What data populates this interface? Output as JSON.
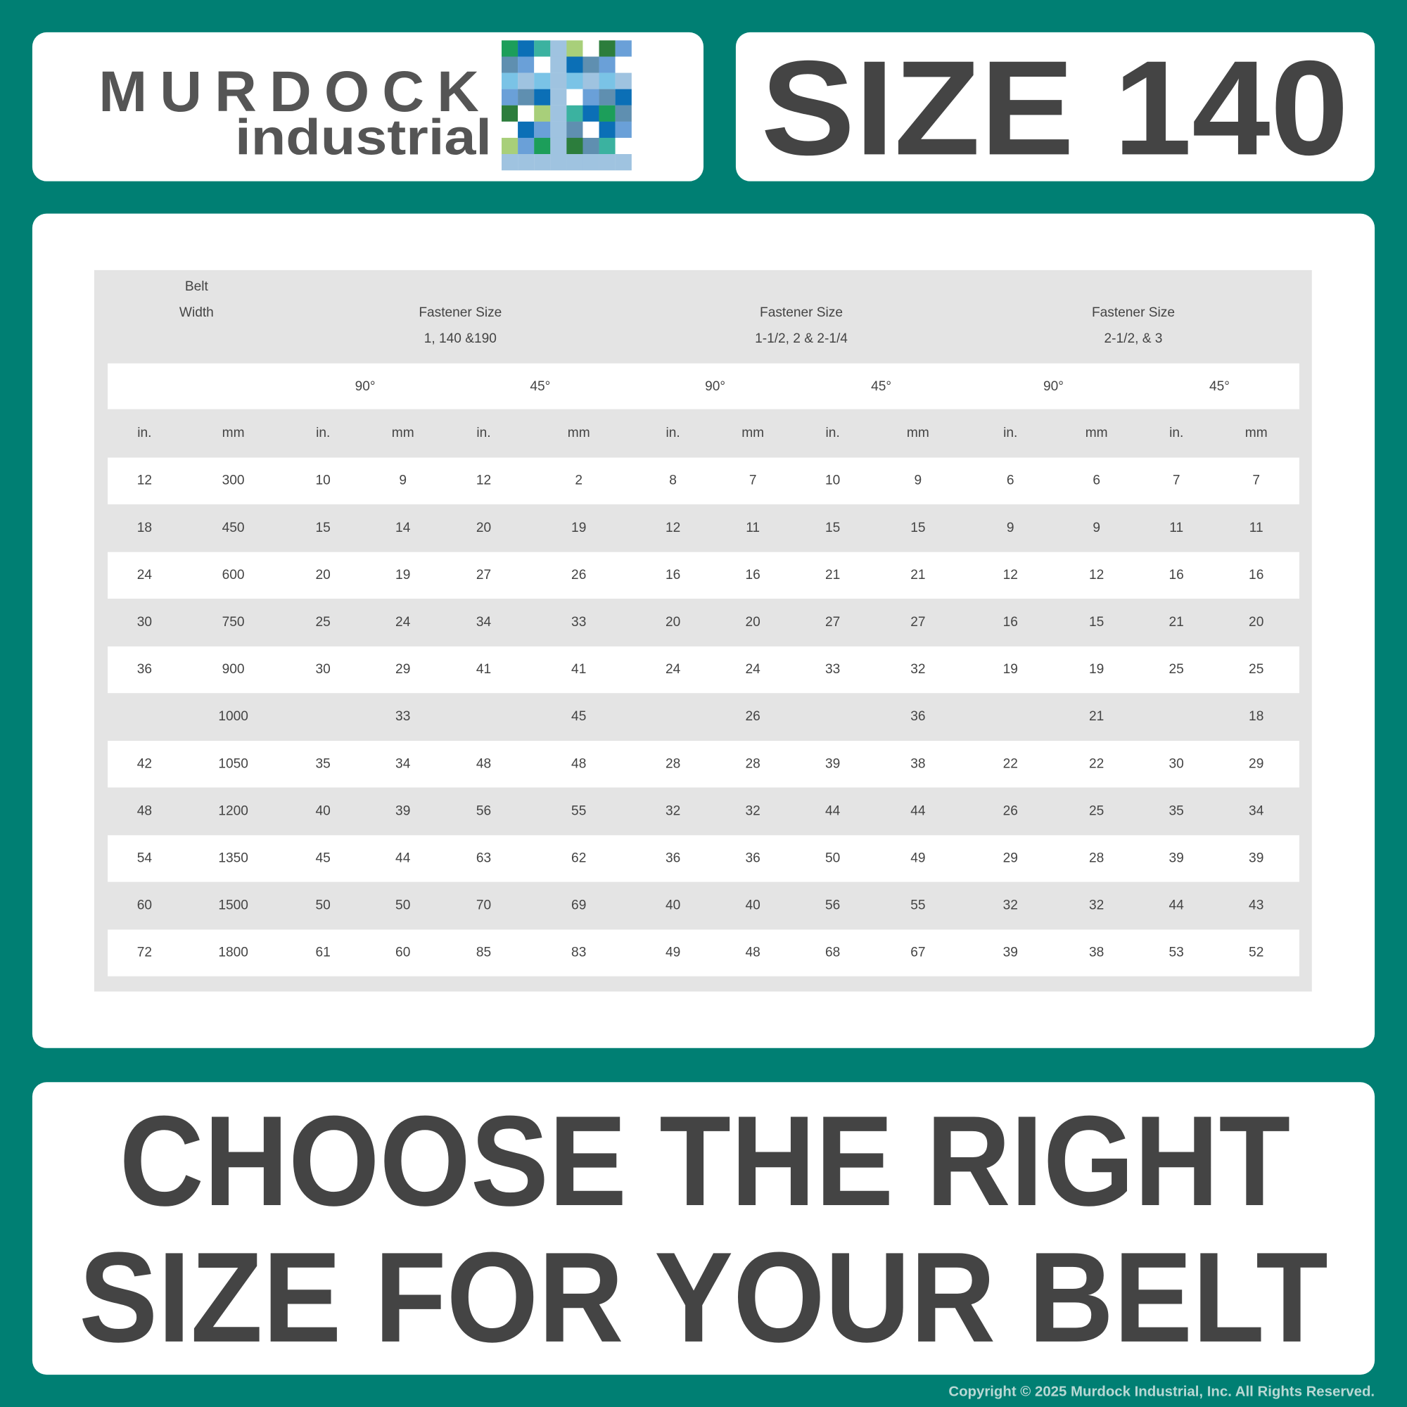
{
  "logo": {
    "brand": "MURDOCK",
    "sub": "industrial"
  },
  "size_title": "SIZE 140",
  "table": {
    "belt_width": [
      "Belt",
      "Width"
    ],
    "groups": [
      {
        "label": "Fastener Size",
        "sizes": "1, 140 &190"
      },
      {
        "label": "Fastener Size",
        "sizes": "1-1/2, 2 & 2-1/4"
      },
      {
        "label": "Fastener Size",
        "sizes": "2-1/2, & 3"
      }
    ],
    "angles": [
      "90°",
      "45°",
      "90°",
      "45°",
      "90°",
      "45°"
    ],
    "units": [
      "in.",
      "mm",
      "in.",
      "mm",
      "in.",
      "mm",
      "in.",
      "mm",
      "in.",
      "mm",
      "in.",
      "mm",
      "in.",
      "mm"
    ],
    "rows": [
      [
        12,
        300,
        10,
        9,
        12,
        2,
        8,
        7,
        10,
        9,
        6,
        6,
        7,
        7
      ],
      [
        18,
        450,
        15,
        14,
        20,
        19,
        12,
        11,
        15,
        15,
        9,
        9,
        11,
        11
      ],
      [
        24,
        600,
        20,
        19,
        27,
        26,
        16,
        16,
        21,
        21,
        12,
        12,
        16,
        16
      ],
      [
        30,
        750,
        25,
        24,
        34,
        33,
        20,
        20,
        27,
        27,
        16,
        15,
        21,
        20
      ],
      [
        36,
        900,
        30,
        29,
        41,
        41,
        24,
        24,
        33,
        32,
        19,
        19,
        25,
        25
      ],
      [
        null,
        1000,
        null,
        33,
        null,
        45,
        null,
        26,
        null,
        36,
        null,
        21,
        null,
        18
      ],
      [
        42,
        1050,
        35,
        34,
        48,
        48,
        28,
        28,
        39,
        38,
        22,
        22,
        30,
        29
      ],
      [
        48,
        1200,
        40,
        39,
        56,
        55,
        32,
        32,
        44,
        44,
        26,
        25,
        35,
        34
      ],
      [
        54,
        1350,
        45,
        44,
        63,
        62,
        36,
        36,
        50,
        49,
        29,
        28,
        39,
        39
      ],
      [
        60,
        1500,
        50,
        50,
        70,
        69,
        40,
        40,
        56,
        55,
        32,
        32,
        44,
        43
      ],
      [
        72,
        1800,
        61,
        60,
        85,
        83,
        49,
        48,
        68,
        67,
        39,
        38,
        53,
        52
      ]
    ]
  },
  "tagline": [
    "CHOOSE THE RIGHT",
    "SIZE FOR YOUR BELT"
  ],
  "copyright": "Copyright © 2025 Murdock Industrial, Inc. All Rights Reserved."
}
